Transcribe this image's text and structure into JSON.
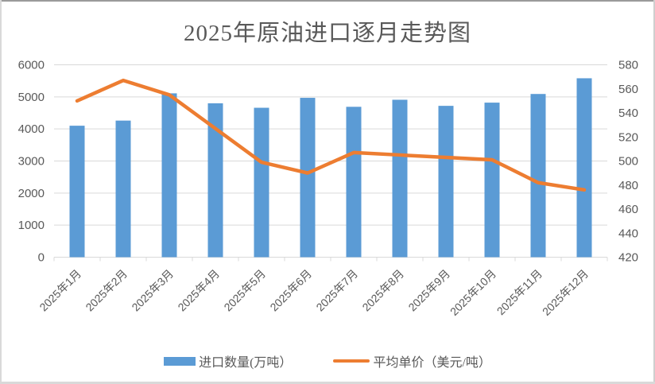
{
  "chart_data": {
    "type": "bar+line combo",
    "title": "2025年原油进口逐月走势图",
    "categories": [
      "2025年1月",
      "2025年2月",
      "2025年3月",
      "2025年4月",
      "2025年5月",
      "2025年6月",
      "2025年7月",
      "2025年8月",
      "2025年9月",
      "2025年10月",
      "2025年11月",
      "2025年12月"
    ],
    "series": [
      {
        "name": "进口数量(万吨）",
        "type": "bar",
        "axis": "left",
        "color": "#5B9BD5",
        "values": [
          4100,
          4260,
          5110,
          4800,
          4660,
          4970,
          4690,
          4910,
          4720,
          4820,
          5090,
          5580
        ]
      },
      {
        "name": "平均单价（美元/吨）",
        "type": "line",
        "axis": "right",
        "color": "#ED7D31",
        "values": [
          550,
          567,
          555,
          527,
          499,
          490,
          507,
          505,
          503,
          501,
          482,
          476
        ]
      }
    ],
    "left_axis": {
      "min": 0,
      "max": 6000,
      "step": 1000,
      "tick_labels": [
        "6000",
        "5000",
        "4000",
        "3000",
        "2000",
        "1000",
        "0"
      ]
    },
    "right_axis": {
      "min": 420,
      "max": 580,
      "step": 20,
      "tick_labels": [
        "580",
        "560",
        "540",
        "520",
        "500",
        "480",
        "460",
        "440",
        "420"
      ]
    },
    "grid": true,
    "legend_position": "bottom"
  },
  "colors": {
    "bar": "#5B9BD5",
    "line": "#ED7D31",
    "gridline": "#D9D9D9",
    "axis_text": "#595959",
    "title_text": "#595959"
  }
}
